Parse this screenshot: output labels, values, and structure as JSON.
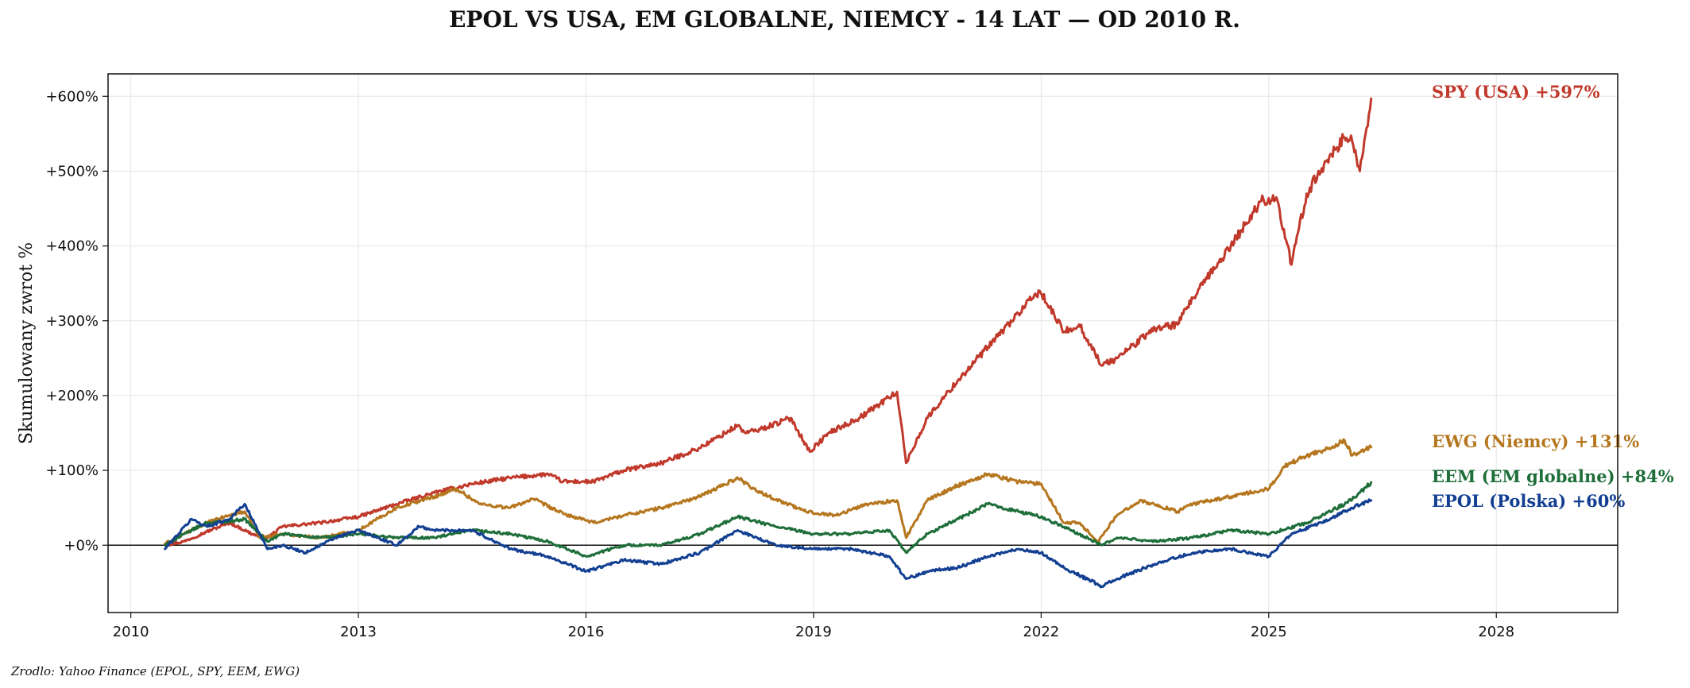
{
  "chart_data": {
    "type": "line",
    "title": "EPOL VS USA, EM GLOBALNE, NIEMCY - 14 LAT — OD 2010 R.",
    "xlabel": "",
    "ylabel": "Skumulowany zwrot %",
    "xlim": [
      2009.7,
      2029.6
    ],
    "ylim": [
      -90,
      630
    ],
    "x_ticks": [
      2010,
      2013,
      2016,
      2019,
      2022,
      2025,
      2028
    ],
    "x_tick_labels": [
      "2010",
      "2013",
      "2016",
      "2019",
      "2022",
      "2025",
      "2028"
    ],
    "y_ticks": [
      0,
      100,
      200,
      300,
      400,
      500,
      600
    ],
    "y_tick_labels": [
      "+0%",
      "+100%",
      "+200%",
      "+300%",
      "+400%",
      "+500%",
      "+600%"
    ],
    "zero_line": true,
    "grid": true,
    "legend": "none",
    "series": [
      {
        "name": "SPY (USA)",
        "end_label": "SPY (USA)  +597%",
        "color": "#c0392b",
        "x": [
          2010.45,
          2010.7,
          2011.0,
          2011.3,
          2011.6,
          2011.8,
          2012.0,
          2012.5,
          2013.0,
          2013.5,
          2014.0,
          2014.5,
          2015.0,
          2015.5,
          2015.7,
          2016.1,
          2016.5,
          2017.0,
          2017.5,
          2018.0,
          2018.1,
          2018.3,
          2018.7,
          2018.95,
          2019.2,
          2019.6,
          2020.1,
          2020.22,
          2020.5,
          2020.9,
          2021.3,
          2021.7,
          2021.98,
          2022.3,
          2022.5,
          2022.8,
          2023.0,
          2023.5,
          2023.8,
          2024.0,
          2024.5,
          2024.9,
          2025.1,
          2025.3,
          2025.5,
          2025.8,
          2026.0,
          2026.1,
          2026.2,
          2026.35
        ],
        "y": [
          0,
          5,
          18,
          30,
          15,
          10,
          25,
          30,
          38,
          55,
          70,
          82,
          90,
          95,
          85,
          85,
          100,
          110,
          130,
          160,
          150,
          155,
          170,
          125,
          150,
          170,
          205,
          110,
          170,
          220,
          265,
          310,
          340,
          285,
          295,
          240,
          250,
          290,
          295,
          330,
          400,
          460,
          465,
          375,
          470,
          520,
          545,
          540,
          500,
          597
        ]
      },
      {
        "name": "EWG (Niemcy)",
        "end_label": "EWG (Niemcy)  +131%",
        "color": "#b5761e",
        "x": [
          2010.45,
          2010.7,
          2011.0,
          2011.3,
          2011.5,
          2011.7,
          2012.0,
          2012.5,
          2013.0,
          2013.5,
          2014.0,
          2014.3,
          2014.6,
          2015.0,
          2015.3,
          2015.7,
          2016.1,
          2016.5,
          2017.0,
          2017.5,
          2018.0,
          2018.3,
          2018.9,
          2019.3,
          2019.7,
          2020.1,
          2020.22,
          2020.5,
          2020.9,
          2021.3,
          2021.7,
          2022.0,
          2022.3,
          2022.5,
          2022.75,
          2023.0,
          2023.3,
          2023.8,
          2024.0,
          2024.5,
          2025.0,
          2025.2,
          2025.5,
          2025.8,
          2026.0,
          2026.1,
          2026.35
        ],
        "y": [
          2,
          15,
          30,
          40,
          45,
          10,
          15,
          10,
          20,
          50,
          65,
          75,
          55,
          50,
          62,
          42,
          30,
          40,
          50,
          65,
          90,
          70,
          45,
          40,
          55,
          60,
          10,
          60,
          80,
          95,
          85,
          82,
          30,
          30,
          5,
          40,
          60,
          45,
          55,
          65,
          75,
          105,
          120,
          130,
          140,
          120,
          131
        ]
      },
      {
        "name": "EEM (EM globalne)",
        "end_label": "EEM (EM globalne)  +84%",
        "color": "#1e6e3a",
        "x": [
          2010.45,
          2010.8,
          2011.0,
          2011.3,
          2011.5,
          2011.8,
          2012.0,
          2012.5,
          2013.0,
          2013.5,
          2014.0,
          2014.5,
          2015.0,
          2015.5,
          2016.0,
          2016.5,
          2017.0,
          2017.5,
          2018.0,
          2018.5,
          2019.0,
          2019.5,
          2020.0,
          2020.22,
          2020.5,
          2021.0,
          2021.3,
          2021.7,
          2022.0,
          2022.5,
          2022.8,
          2023.0,
          2023.5,
          2024.0,
          2024.5,
          2025.0,
          2025.5,
          2026.0,
          2026.2,
          2026.35
        ],
        "y": [
          0,
          20,
          30,
          32,
          35,
          5,
          15,
          10,
          15,
          10,
          10,
          20,
          15,
          5,
          -15,
          0,
          0,
          15,
          38,
          25,
          15,
          15,
          20,
          -10,
          15,
          40,
          55,
          45,
          38,
          15,
          0,
          10,
          5,
          10,
          20,
          15,
          30,
          55,
          70,
          84
        ]
      },
      {
        "name": "EPOL (Polska)",
        "end_label": "EPOL (Polska)  +60%",
        "color": "#123f91",
        "x": [
          2010.45,
          2010.8,
          2011.0,
          2011.3,
          2011.5,
          2011.8,
          2012.0,
          2012.3,
          2012.7,
          2013.0,
          2013.5,
          2013.8,
          2014.0,
          2014.5,
          2015.0,
          2015.5,
          2016.0,
          2016.5,
          2017.0,
          2017.5,
          2018.0,
          2018.5,
          2019.0,
          2019.5,
          2020.0,
          2020.22,
          2020.5,
          2020.9,
          2021.3,
          2021.7,
          2022.0,
          2022.3,
          2022.8,
          2023.0,
          2023.5,
          2024.0,
          2024.5,
          2025.0,
          2025.3,
          2025.7,
          2026.0,
          2026.1,
          2026.35
        ],
        "y": [
          -5,
          35,
          25,
          35,
          55,
          -5,
          0,
          -10,
          10,
          20,
          0,
          25,
          20,
          20,
          -5,
          -15,
          -35,
          -20,
          -25,
          -10,
          20,
          0,
          -5,
          -5,
          -15,
          -45,
          -35,
          -30,
          -15,
          -5,
          -10,
          -30,
          -55,
          -45,
          -25,
          -10,
          -5,
          -15,
          15,
          30,
          45,
          50,
          60
        ]
      }
    ]
  },
  "source": "Zrodlo: Yahoo Finance (EPOL, SPY, EEM, EWG)"
}
